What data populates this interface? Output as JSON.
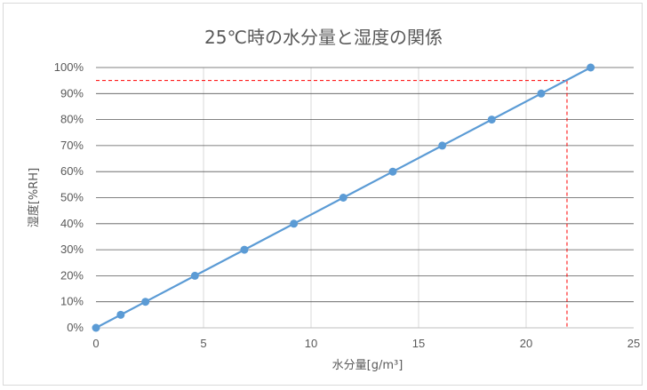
{
  "chart_data": {
    "type": "scatter",
    "title": "25℃時の水分量と湿度の関係",
    "xlabel": "水分量[g/m³]",
    "ylabel": "湿度[%RH]",
    "xlim": [
      0,
      25
    ],
    "ylim": [
      0,
      100
    ],
    "x_ticks": [
      0,
      5,
      10,
      15,
      20,
      25
    ],
    "y_ticks": [
      0,
      10,
      20,
      30,
      40,
      50,
      60,
      70,
      80,
      90,
      100
    ],
    "y_tick_labels": [
      "0%",
      "10%",
      "20%",
      "30%",
      "40%",
      "50%",
      "60%",
      "70%",
      "80%",
      "90%",
      "100%"
    ],
    "grid": "both",
    "legend": "none",
    "series": [
      {
        "x": [
          0,
          1.15,
          2.3,
          4.6,
          6.9,
          9.2,
          11.5,
          13.8,
          16.1,
          18.4,
          20.7,
          23.0
        ],
        "y": [
          0,
          5,
          10,
          20,
          30,
          40,
          50,
          60,
          70,
          80,
          90,
          100
        ],
        "color": "#5b9bd5"
      }
    ],
    "reference_lines": [
      {
        "orientation": "horizontal",
        "value": 95,
        "x_end": 21.9,
        "color": "#ff0000",
        "style": "dashed"
      },
      {
        "orientation": "vertical",
        "value": 21.9,
        "y_end": 95,
        "color": "#ff0000",
        "style": "dashed"
      }
    ]
  }
}
